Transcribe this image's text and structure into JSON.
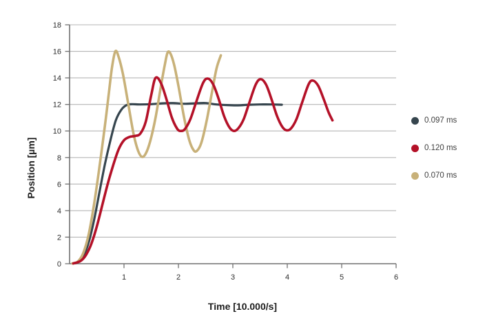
{
  "figure": {
    "background_color": "#ffffff"
  },
  "chart_data": {
    "type": "line",
    "title": "",
    "xlabel": "Time [10.000/s]",
    "ylabel": "Position [µm]",
    "xlim": [
      0,
      6
    ],
    "ylim": [
      0,
      18
    ],
    "xticks": [
      1,
      2,
      3,
      4,
      5,
      6
    ],
    "yticks": [
      0,
      2,
      4,
      6,
      8,
      10,
      12,
      14,
      16,
      18
    ],
    "grid": "horizontal-only",
    "grid_color": "#b5b5b5",
    "axis_color": "#6f6f6f",
    "tick_label_color": "#2e2e2e",
    "legend_position": "right",
    "series": [
      {
        "name": "0.097 ms",
        "color": "#36454e",
        "stroke_width": 3.2,
        "z": 0,
        "points": [
          [
            0.05,
            0.02
          ],
          [
            0.15,
            0.1
          ],
          [
            0.25,
            0.55
          ],
          [
            0.35,
            1.6
          ],
          [
            0.45,
            3.3
          ],
          [
            0.55,
            5.4
          ],
          [
            0.65,
            7.5
          ],
          [
            0.75,
            9.3
          ],
          [
            0.85,
            10.8
          ],
          [
            0.95,
            11.6
          ],
          [
            1.05,
            11.95
          ],
          [
            1.15,
            12.02
          ],
          [
            1.3,
            12.0
          ],
          [
            1.5,
            12.02
          ],
          [
            1.7,
            12.08
          ],
          [
            1.9,
            12.1
          ],
          [
            2.1,
            12.05
          ],
          [
            2.3,
            12.08
          ],
          [
            2.5,
            12.1
          ],
          [
            2.7,
            12.0
          ],
          [
            2.9,
            11.95
          ],
          [
            3.1,
            11.93
          ],
          [
            3.3,
            11.98
          ],
          [
            3.5,
            12.0
          ],
          [
            3.7,
            12.0
          ],
          [
            3.9,
            11.98
          ]
        ]
      },
      {
        "name": "0.120 ms",
        "color": "#b41128",
        "stroke_width": 3.6,
        "z": 2,
        "points": [
          [
            0.07,
            0.02
          ],
          [
            0.2,
            0.2
          ],
          [
            0.3,
            0.65
          ],
          [
            0.4,
            1.5
          ],
          [
            0.5,
            2.8
          ],
          [
            0.6,
            4.4
          ],
          [
            0.7,
            6.0
          ],
          [
            0.8,
            7.4
          ],
          [
            0.9,
            8.6
          ],
          [
            1.0,
            9.3
          ],
          [
            1.1,
            9.55
          ],
          [
            1.2,
            9.62
          ],
          [
            1.3,
            9.8
          ],
          [
            1.4,
            10.7
          ],
          [
            1.5,
            12.7
          ],
          [
            1.58,
            14.0
          ],
          [
            1.68,
            13.6
          ],
          [
            1.78,
            12.4
          ],
          [
            1.88,
            11.0
          ],
          [
            1.98,
            10.15
          ],
          [
            2.05,
            10.0
          ],
          [
            2.12,
            10.15
          ],
          [
            2.22,
            10.9
          ],
          [
            2.32,
            12.1
          ],
          [
            2.45,
            13.6
          ],
          [
            2.54,
            13.95
          ],
          [
            2.64,
            13.5
          ],
          [
            2.74,
            12.4
          ],
          [
            2.84,
            11.1
          ],
          [
            2.94,
            10.25
          ],
          [
            3.02,
            10.0
          ],
          [
            3.1,
            10.2
          ],
          [
            3.2,
            10.9
          ],
          [
            3.3,
            12.1
          ],
          [
            3.42,
            13.5
          ],
          [
            3.51,
            13.9
          ],
          [
            3.61,
            13.5
          ],
          [
            3.71,
            12.4
          ],
          [
            3.81,
            11.15
          ],
          [
            3.91,
            10.3
          ],
          [
            3.99,
            10.05
          ],
          [
            4.07,
            10.2
          ],
          [
            4.17,
            10.9
          ],
          [
            4.27,
            12.1
          ],
          [
            4.39,
            13.5
          ],
          [
            4.47,
            13.8
          ],
          [
            4.57,
            13.4
          ],
          [
            4.67,
            12.4
          ],
          [
            4.76,
            11.4
          ],
          [
            4.83,
            10.8
          ]
        ]
      },
      {
        "name": "0.070 ms",
        "color": "#c8b179",
        "stroke_width": 3.6,
        "z": 1,
        "points": [
          [
            0.05,
            0.02
          ],
          [
            0.15,
            0.15
          ],
          [
            0.25,
            0.8
          ],
          [
            0.35,
            2.2
          ],
          [
            0.45,
            4.5
          ],
          [
            0.55,
            7.3
          ],
          [
            0.65,
            10.4
          ],
          [
            0.72,
            12.8
          ],
          [
            0.78,
            14.8
          ],
          [
            0.84,
            16.0
          ],
          [
            0.9,
            15.6
          ],
          [
            0.98,
            14.3
          ],
          [
            1.08,
            12.0
          ],
          [
            1.18,
            9.7
          ],
          [
            1.26,
            8.5
          ],
          [
            1.33,
            8.05
          ],
          [
            1.4,
            8.3
          ],
          [
            1.48,
            9.2
          ],
          [
            1.58,
            11.0
          ],
          [
            1.68,
            13.4
          ],
          [
            1.75,
            15.0
          ],
          [
            1.8,
            15.9
          ],
          [
            1.85,
            15.85
          ],
          [
            1.92,
            15.0
          ],
          [
            2.0,
            13.4
          ],
          [
            2.1,
            11.1
          ],
          [
            2.2,
            9.3
          ],
          [
            2.28,
            8.55
          ],
          [
            2.34,
            8.5
          ],
          [
            2.42,
            9.1
          ],
          [
            2.52,
            10.8
          ],
          [
            2.62,
            13.0
          ],
          [
            2.7,
            14.7
          ],
          [
            2.78,
            15.7
          ]
        ]
      }
    ]
  }
}
